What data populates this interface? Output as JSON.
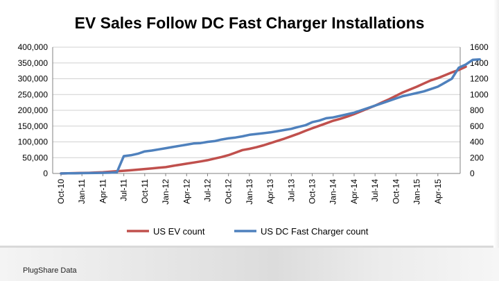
{
  "footer": {
    "source": "PlugShare Data"
  },
  "chart_data": {
    "type": "line",
    "title": "EV Sales Follow DC Fast Charger Installations",
    "xlabel": "",
    "ylabel": "",
    "y_left_range": [
      0,
      400000
    ],
    "y_right_range": [
      0,
      1600
    ],
    "y_left_ticks": [
      "0",
      "50,000",
      "100,000",
      "150,000",
      "200,000",
      "250,000",
      "300,000",
      "350,000",
      "400,000"
    ],
    "y_right_ticks": [
      "0",
      "200",
      "400",
      "600",
      "800",
      "1000",
      "1200",
      "1400",
      "1600"
    ],
    "x_tick_labels": [
      "Oct-10",
      "Jan-11",
      "Apr-11",
      "Jul-11",
      "Oct-11",
      "Jan-12",
      "Apr-12",
      "Jul-12",
      "Oct-12",
      "Jan-13",
      "Apr-13",
      "Jul-13",
      "Oct-13",
      "Jan-14",
      "Apr-14",
      "Jul-14",
      "Oct-14",
      "Jan-15",
      "Apr-15"
    ],
    "x_tick_every": 3,
    "grid": "horizontal",
    "legend": "bottom",
    "series": [
      {
        "name": "US EV count",
        "axis": "left",
        "color": "#c0504d",
        "values": [
          0,
          500,
          1000,
          1500,
          2000,
          3000,
          4000,
          5500,
          7000,
          8500,
          10000,
          12000,
          14000,
          16000,
          18000,
          20000,
          24000,
          27500,
          31000,
          34500,
          38000,
          42000,
          47000,
          52000,
          58000,
          66000,
          74000,
          78000,
          83000,
          89000,
          96000,
          103000,
          110000,
          118000,
          126000,
          135000,
          143000,
          151000,
          159000,
          167000,
          173000,
          180000,
          188000,
          197000,
          206000,
          215000,
          225000,
          235000,
          246000,
          257000,
          266000,
          275000,
          285000,
          295000,
          302000,
          311000,
          320000,
          328000,
          338000
        ]
      },
      {
        "name": "US DC Fast Charger count",
        "axis": "right",
        "color": "#4f81bd",
        "values": [
          0,
          2,
          3,
          4,
          5,
          6,
          8,
          10,
          14,
          220,
          230,
          250,
          280,
          290,
          305,
          320,
          335,
          350,
          365,
          380,
          385,
          400,
          410,
          430,
          445,
          455,
          470,
          490,
          500,
          510,
          520,
          535,
          550,
          565,
          590,
          610,
          650,
          670,
          700,
          710,
          730,
          750,
          770,
          800,
          830,
          860,
          890,
          920,
          950,
          980,
          1000,
          1020,
          1040,
          1070,
          1100,
          1150,
          1200,
          1340,
          1380,
          1440,
          1445
        ]
      }
    ]
  }
}
